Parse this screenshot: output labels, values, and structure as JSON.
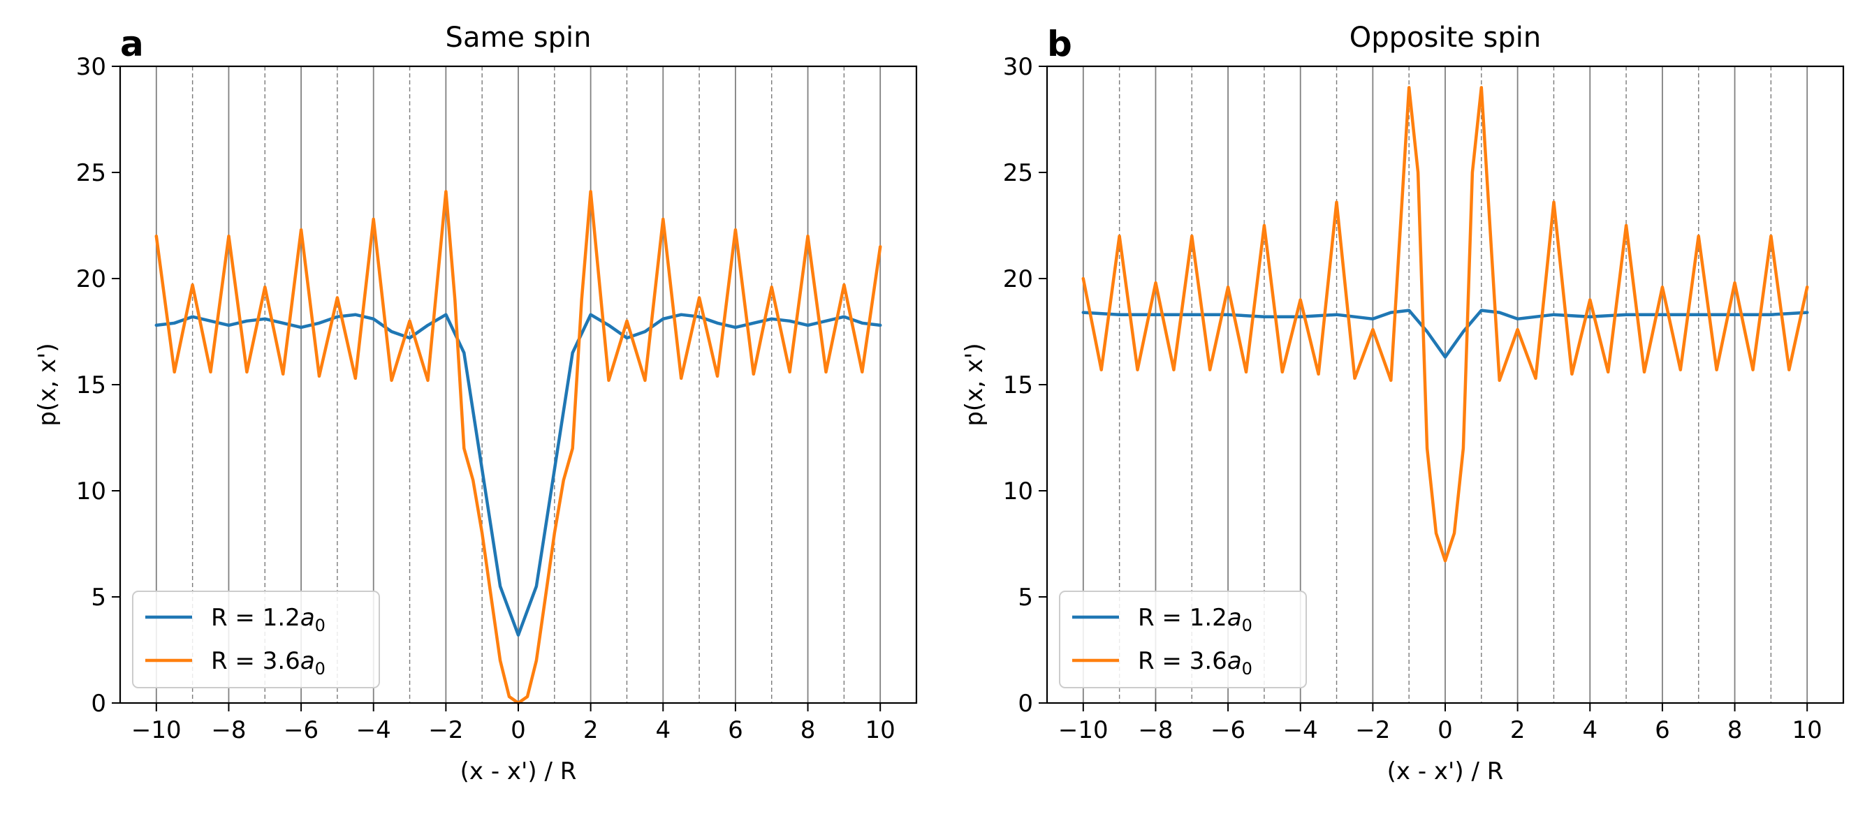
{
  "chart_data": [
    {
      "type": "line",
      "panel_label": "a",
      "title": "Same spin",
      "xlabel": "(x - x') / R",
      "ylabel": "p(x, x')",
      "xlim": [
        -11,
        11
      ],
      "ylim": [
        0,
        30
      ],
      "xticks": [
        -10,
        -8,
        -6,
        -4,
        -2,
        0,
        2,
        4,
        6,
        8,
        10
      ],
      "xtick_labels": [
        "−10",
        "−8",
        "−6",
        "−4",
        "−2",
        "0",
        "2",
        "4",
        "6",
        "8",
        "10"
      ],
      "yticks": [
        0,
        5,
        10,
        15,
        20,
        25,
        30
      ],
      "ytick_labels": [
        "0",
        "5",
        "10",
        "15",
        "20",
        "25",
        "30"
      ],
      "grid": "vertical lines: solid at even x, dashed at odd x",
      "legend_position": "lower-left",
      "series": [
        {
          "name": "R = 1.2a0",
          "name_prefix": "R = 1.2",
          "name_var": "a",
          "name_sub": "0",
          "color": "#1f77b4",
          "x": [
            -10,
            -9.5,
            -9,
            -8.5,
            -8,
            -7.5,
            -7,
            -6.5,
            -6,
            -5.5,
            -5,
            -4.5,
            -4,
            -3.5,
            -3,
            -2.5,
            -2,
            -1.5,
            -1,
            -0.5,
            0,
            0.5,
            1,
            1.5,
            2,
            2.5,
            3,
            3.5,
            4,
            4.5,
            5,
            5.5,
            6,
            6.5,
            7,
            7.5,
            8,
            8.5,
            9,
            9.5,
            10
          ],
          "y": [
            17.8,
            17.9,
            18.2,
            18.0,
            17.8,
            18.0,
            18.1,
            17.9,
            17.7,
            17.9,
            18.2,
            18.3,
            18.1,
            17.5,
            17.2,
            17.8,
            18.3,
            16.5,
            11.0,
            5.5,
            3.2,
            5.5,
            11.0,
            16.5,
            18.3,
            17.8,
            17.2,
            17.5,
            18.1,
            18.3,
            18.2,
            17.9,
            17.7,
            17.9,
            18.1,
            18.0,
            17.8,
            18.0,
            18.2,
            17.9,
            17.8
          ]
        },
        {
          "name": "R = 3.6a0",
          "name_prefix": "R = 3.6",
          "name_var": "a",
          "name_sub": "0",
          "color": "#ff7f0e",
          "x": [
            -10,
            -9.5,
            -9,
            -8.5,
            -8,
            -7.5,
            -7,
            -6.5,
            -6,
            -5.5,
            -5,
            -4.5,
            -4,
            -3.5,
            -3,
            -2.5,
            -2,
            -1.75,
            -1.5,
            -1.25,
            -1,
            -0.75,
            -0.5,
            -0.25,
            0,
            0.25,
            0.5,
            0.75,
            1,
            1.25,
            1.5,
            1.75,
            2,
            2.5,
            3,
            3.5,
            4,
            4.5,
            5,
            5.5,
            6,
            6.5,
            7,
            7.5,
            8,
            8.5,
            9,
            9.5,
            10
          ],
          "y": [
            22.0,
            15.6,
            19.7,
            15.6,
            22.0,
            15.6,
            19.6,
            15.5,
            22.3,
            15.4,
            19.1,
            15.3,
            22.8,
            15.2,
            18.0,
            15.2,
            24.1,
            19.0,
            12.0,
            10.5,
            8.0,
            5.0,
            2.0,
            0.3,
            0.0,
            0.3,
            2.0,
            5.0,
            8.0,
            10.5,
            12.0,
            19.0,
            24.1,
            15.2,
            18.0,
            15.2,
            22.8,
            15.3,
            19.1,
            15.4,
            22.3,
            15.5,
            19.6,
            15.6,
            22.0,
            15.6,
            19.7,
            15.6,
            21.5
          ]
        }
      ]
    },
    {
      "type": "line",
      "panel_label": "b",
      "title": "Opposite spin",
      "xlabel": "(x - x') / R",
      "ylabel": "p(x, x')",
      "xlim": [
        -11,
        11
      ],
      "ylim": [
        0,
        30
      ],
      "xticks": [
        -10,
        -8,
        -6,
        -4,
        -2,
        0,
        2,
        4,
        6,
        8,
        10
      ],
      "xtick_labels": [
        "−10",
        "−8",
        "−6",
        "−4",
        "−2",
        "0",
        "2",
        "4",
        "6",
        "8",
        "10"
      ],
      "yticks": [
        0,
        5,
        10,
        15,
        20,
        25,
        30
      ],
      "ytick_labels": [
        "0",
        "5",
        "10",
        "15",
        "20",
        "25",
        "30"
      ],
      "grid": "vertical lines: solid at even x, dashed at odd x",
      "legend_position": "lower-left",
      "series": [
        {
          "name": "R = 1.2a0",
          "name_prefix": "R = 1.2",
          "name_var": "a",
          "name_sub": "0",
          "color": "#1f77b4",
          "x": [
            -10,
            -9,
            -8,
            -7,
            -6,
            -5,
            -4,
            -3,
            -2,
            -1.5,
            -1,
            -0.5,
            0,
            0.5,
            1,
            1.5,
            2,
            3,
            4,
            5,
            6,
            7,
            8,
            9,
            10
          ],
          "y": [
            18.4,
            18.3,
            18.3,
            18.3,
            18.3,
            18.2,
            18.2,
            18.3,
            18.1,
            18.4,
            18.5,
            17.5,
            16.3,
            17.5,
            18.5,
            18.4,
            18.1,
            18.3,
            18.2,
            18.3,
            18.3,
            18.3,
            18.3,
            18.3,
            18.4
          ]
        },
        {
          "name": "R = 3.6a0",
          "name_prefix": "R = 3.6",
          "name_var": "a",
          "name_sub": "0",
          "color": "#ff7f0e",
          "x": [
            -10,
            -9.5,
            -9,
            -8.5,
            -8,
            -7.5,
            -7,
            -6.5,
            -6,
            -5.5,
            -5,
            -4.5,
            -4,
            -3.5,
            -3,
            -2.5,
            -2,
            -1.5,
            -1,
            -0.75,
            -0.5,
            -0.25,
            0,
            0.25,
            0.5,
            0.75,
            1,
            1.5,
            2,
            2.5,
            3,
            3.5,
            4,
            4.5,
            5,
            5.5,
            6,
            6.5,
            7,
            7.5,
            8,
            8.5,
            9,
            9.5,
            10
          ],
          "y": [
            20.0,
            15.7,
            22.0,
            15.7,
            19.8,
            15.7,
            22.0,
            15.7,
            19.6,
            15.6,
            22.5,
            15.6,
            19.0,
            15.5,
            23.6,
            15.3,
            17.6,
            15.2,
            29.0,
            25.0,
            12.0,
            8.0,
            6.7,
            8.0,
            12.0,
            25.0,
            29.0,
            15.2,
            17.6,
            15.3,
            23.6,
            15.5,
            19.0,
            15.6,
            22.5,
            15.6,
            19.6,
            15.7,
            22.0,
            15.7,
            19.8,
            15.7,
            22.0,
            15.7,
            19.6
          ]
        }
      ]
    }
  ]
}
